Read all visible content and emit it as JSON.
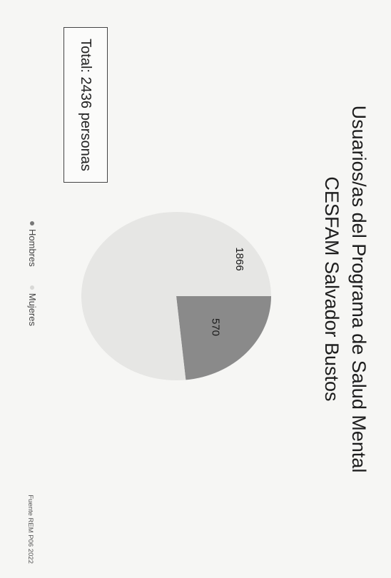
{
  "slide": {
    "title_line1": "Usuarios/as del Programa de Salud Mental",
    "title_line2": "CESFAM Salvador Bustos",
    "total_label": "Total: 2436 personas",
    "source": "Fuente REM P06 2022"
  },
  "chart_data": {
    "type": "pie",
    "title": "Usuarios/as del Programa de Salud Mental CESFAM Salvador Bustos",
    "categories": [
      "Hombres",
      "Mujeres"
    ],
    "values": [
      570,
      1866
    ],
    "colors": [
      "#8a8a8a",
      "#e6e6e4"
    ],
    "legend_position": "bottom"
  }
}
